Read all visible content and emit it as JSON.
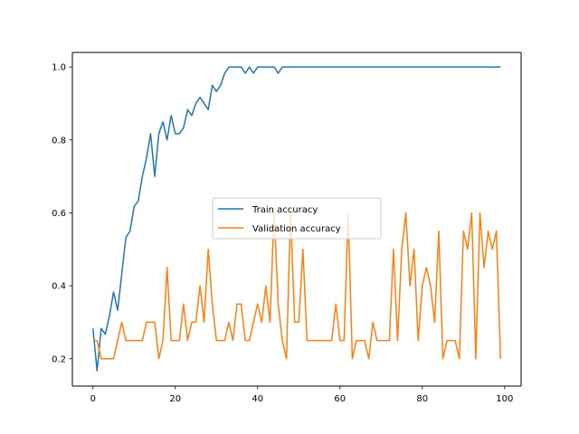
{
  "chart_data": {
    "type": "line",
    "title": "",
    "xlabel": "",
    "ylabel": "",
    "xlim": [
      -5,
      104
    ],
    "ylim": [
      0.125,
      1.04
    ],
    "xticks": [
      0,
      20,
      40,
      60,
      80,
      100
    ],
    "yticks": [
      0.2,
      0.4,
      0.6,
      0.8,
      1.0
    ],
    "xtick_labels": [
      "0",
      "20",
      "40",
      "60",
      "80",
      "100"
    ],
    "ytick_labels": [
      "0.2",
      "0.4",
      "0.6",
      "0.8",
      "1.0"
    ],
    "grid": false,
    "legend_position": "center-right",
    "x": [
      0,
      1,
      2,
      3,
      4,
      5,
      6,
      7,
      8,
      9,
      10,
      11,
      12,
      13,
      14,
      15,
      16,
      17,
      18,
      19,
      20,
      21,
      22,
      23,
      24,
      25,
      26,
      27,
      28,
      29,
      30,
      31,
      32,
      33,
      34,
      35,
      36,
      37,
      38,
      39,
      40,
      41,
      42,
      43,
      44,
      45,
      46,
      47,
      48,
      49,
      50,
      51,
      52,
      53,
      54,
      55,
      56,
      57,
      58,
      59,
      60,
      61,
      62,
      63,
      64,
      65,
      66,
      67,
      68,
      69,
      70,
      71,
      72,
      73,
      74,
      75,
      76,
      77,
      78,
      79,
      80,
      81,
      82,
      83,
      84,
      85,
      86,
      87,
      88,
      89,
      90,
      91,
      92,
      93,
      94,
      95,
      96,
      97,
      98,
      99
    ],
    "series": [
      {
        "name": "Train accuracy",
        "color": "#1f77b4",
        "values": [
          0.283,
          0.167,
          0.283,
          0.267,
          0.317,
          0.383,
          0.333,
          0.433,
          0.533,
          0.55,
          0.617,
          0.633,
          0.7,
          0.75,
          0.817,
          0.7,
          0.817,
          0.85,
          0.8,
          0.867,
          0.817,
          0.817,
          0.833,
          0.883,
          0.867,
          0.9,
          0.917,
          0.9,
          0.883,
          0.95,
          0.933,
          0.95,
          0.983,
          1.0,
          1.0,
          1.0,
          1.0,
          0.983,
          1.0,
          0.983,
          1.0,
          1.0,
          1.0,
          1.0,
          1.0,
          0.983,
          1.0,
          1.0,
          1.0,
          1.0,
          1.0,
          1.0,
          1.0,
          1.0,
          1.0,
          1.0,
          1.0,
          1.0,
          1.0,
          1.0,
          1.0,
          1.0,
          1.0,
          1.0,
          1.0,
          1.0,
          1.0,
          1.0,
          1.0,
          1.0,
          1.0,
          1.0,
          1.0,
          1.0,
          1.0,
          1.0,
          1.0,
          1.0,
          1.0,
          1.0,
          1.0,
          1.0,
          1.0,
          1.0,
          1.0,
          1.0,
          1.0,
          1.0,
          1.0,
          1.0,
          1.0,
          1.0,
          1.0,
          1.0,
          1.0,
          1.0,
          1.0,
          1.0,
          1.0,
          1.0
        ]
      },
      {
        "name": "Validation accuracy",
        "color": "#ff7f0e",
        "values": [
          0.25,
          0.25,
          0.2,
          0.2,
          0.2,
          0.2,
          0.25,
          0.3,
          0.25,
          0.25,
          0.25,
          0.25,
          0.25,
          0.3,
          0.3,
          0.3,
          0.2,
          0.25,
          0.45,
          0.25,
          0.25,
          0.25,
          0.35,
          0.25,
          0.3,
          0.3,
          0.4,
          0.3,
          0.5,
          0.35,
          0.25,
          0.25,
          0.25,
          0.3,
          0.25,
          0.35,
          0.35,
          0.25,
          0.25,
          0.3,
          0.35,
          0.3,
          0.4,
          0.3,
          0.6,
          0.35,
          0.25,
          0.2,
          0.6,
          0.3,
          0.3,
          0.5,
          0.25,
          0.25,
          0.25,
          0.25,
          0.25,
          0.25,
          0.25,
          0.35,
          0.25,
          0.25,
          0.6,
          0.2,
          0.25,
          0.25,
          0.25,
          0.2,
          0.3,
          0.25,
          0.25,
          0.25,
          0.25,
          0.5,
          0.25,
          0.5,
          0.6,
          0.4,
          0.5,
          0.25,
          0.4,
          0.45,
          0.4,
          0.3,
          0.55,
          0.2,
          0.25,
          0.25,
          0.25,
          0.2,
          0.55,
          0.5,
          0.6,
          0.2,
          0.6,
          0.45,
          0.55,
          0.5,
          0.55,
          0.2
        ]
      }
    ]
  }
}
